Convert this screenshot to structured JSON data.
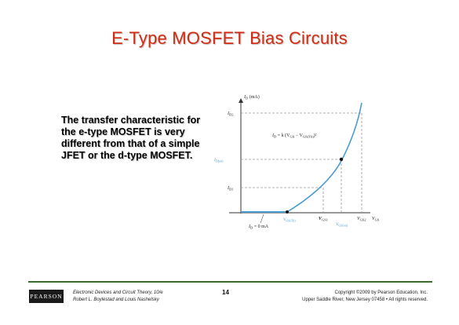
{
  "slide": {
    "title": "E-Type MOSFET Bias Circuits",
    "body_lines": [
      "The transfer characteristic for",
      "the e-type MOSFET is very",
      "different from that of a simple",
      "JFET or the d-type MOSFET."
    ]
  },
  "figure": {
    "y_axis_label": "I",
    "y_axis_sub": "D",
    "y_axis_unit": " (mA)",
    "x_axis_label": "V",
    "x_axis_sub": "GS",
    "id2_label": "I",
    "id2_sub": "D2",
    "id1_label": "I",
    "id1_sub": "D1",
    "idon_label": "I",
    "idon_sub": "D(on)",
    "equation_main": "I",
    "equation_sub1": "D",
    "equation_mid": " = k (V",
    "equation_sub2": "GS",
    "equation_minus": " − V",
    "equation_sub3": "GS(Th)",
    "equation_end": ")²",
    "vgsth_label": "V",
    "vgsth_sub": "GS(Th)",
    "vgs1_label": "V",
    "vgs1_sub": "GS1",
    "vgson_label": "V",
    "vgson_sub": "GS(on)",
    "vgs2_label": "V",
    "vgs2_sub": "GS2",
    "id0_label": "I",
    "id0_sub": "D",
    "id0_value": " = 0 mA",
    "colors": {
      "curve": "#4a9bd0",
      "guide": "#9a9a9a",
      "axis": "#333333"
    }
  },
  "footer": {
    "logo_text": "PEARSON",
    "book_line1": "Electronic Devices and Circuit Theory, 10/e",
    "book_line2": "Robert L. Boylestad and Louis Nashelsky",
    "page_number": "14",
    "copyright_line1": "Copyright ©2009 by Pearson Education, Inc.",
    "copyright_line2": "Upper Saddle River, New Jersey 07458 • All rights reserved."
  }
}
